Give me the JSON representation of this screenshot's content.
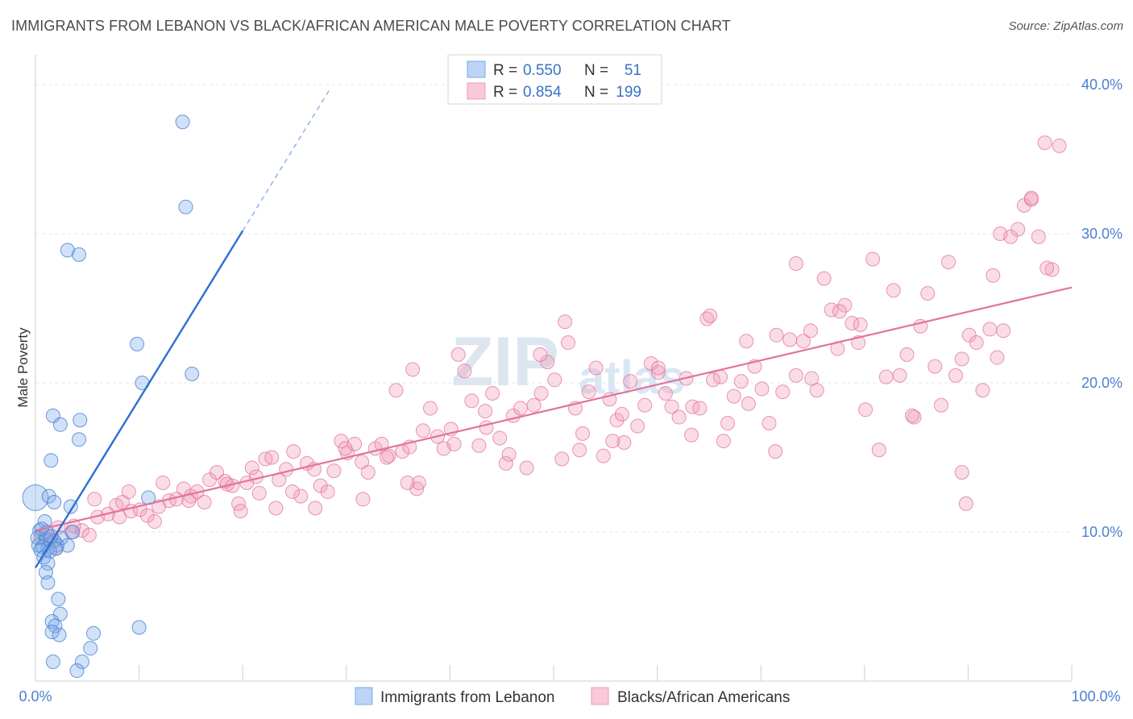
{
  "title": "IMMIGRANTS FROM LEBANON VS BLACK/AFRICAN AMERICAN MALE POVERTY CORRELATION CHART",
  "source": "Source: ZipAtlas.com",
  "watermark": {
    "zip": "ZIP",
    "atlas": "atlas"
  },
  "colors": {
    "blue": "#7aaae8",
    "blue_line": "#2e6fd0",
    "pink": "#f29ab8",
    "pink_line": "#e2739e",
    "tick": "#4a7fd0"
  },
  "legend": {
    "rows": [
      {
        "r_label": "R =",
        "r_value": "0.550",
        "n_label": "N =",
        "n_value": "51"
      },
      {
        "r_label": "R =",
        "r_value": "0.854",
        "n_label": "N =",
        "n_value": "199"
      }
    ]
  },
  "chart_data": {
    "type": "scatter",
    "title": "IMMIGRANTS FROM LEBANON VS BLACK/AFRICAN AMERICAN MALE POVERTY CORRELATION CHART",
    "xlabel": "",
    "ylabel": "Male Poverty",
    "xlim": [
      0,
      100
    ],
    "ylim": [
      0,
      42
    ],
    "x_tick_labels": [
      "0.0%",
      "100.0%"
    ],
    "y_ticks": [
      10,
      20,
      30,
      40
    ],
    "y_tick_labels": [
      "10.0%",
      "20.0%",
      "30.0%",
      "40.0%"
    ],
    "legend_position": "top-center",
    "series": [
      {
        "name": "Immigrants from Lebanon",
        "r": 0.55,
        "n": 51,
        "trend": {
          "x": [
            0,
            20
          ],
          "y": [
            7.6,
            30.2
          ],
          "dashed_to": [
            28.5,
            39.8
          ]
        },
        "points": [
          [
            14.2,
            37.5
          ],
          [
            14.5,
            31.8
          ],
          [
            3.1,
            28.9
          ],
          [
            4.2,
            28.6
          ],
          [
            9.8,
            22.6
          ],
          [
            10.3,
            20.0
          ],
          [
            15.1,
            20.6
          ],
          [
            1.7,
            17.8
          ],
          [
            2.4,
            17.2
          ],
          [
            4.3,
            17.5
          ],
          [
            4.2,
            16.2
          ],
          [
            1.5,
            14.8
          ],
          [
            0.0,
            12.3
          ],
          [
            1.3,
            12.4
          ],
          [
            1.8,
            12.0
          ],
          [
            3.4,
            11.7
          ],
          [
            10.9,
            12.3
          ],
          [
            0.9,
            10.7
          ],
          [
            0.4,
            10.1
          ],
          [
            1.1,
            10.0
          ],
          [
            0.2,
            9.6
          ],
          [
            1.0,
            9.5
          ],
          [
            1.8,
            9.4
          ],
          [
            2.5,
            9.6
          ],
          [
            3.6,
            10.0
          ],
          [
            0.3,
            9.1
          ],
          [
            0.7,
            9.0
          ],
          [
            1.2,
            8.9
          ],
          [
            2.1,
            9.1
          ],
          [
            3.1,
            9.1
          ],
          [
            0.5,
            8.8
          ],
          [
            1.4,
            8.7
          ],
          [
            2.0,
            8.9
          ],
          [
            0.8,
            8.3
          ],
          [
            1.2,
            7.9
          ],
          [
            1.0,
            7.3
          ],
          [
            1.2,
            6.6
          ],
          [
            2.2,
            5.5
          ],
          [
            2.4,
            4.5
          ],
          [
            1.6,
            4.0
          ],
          [
            1.9,
            3.7
          ],
          [
            1.6,
            3.3
          ],
          [
            2.3,
            3.1
          ],
          [
            5.6,
            3.2
          ],
          [
            10.0,
            3.6
          ],
          [
            5.3,
            2.2
          ],
          [
            1.7,
            1.3
          ],
          [
            4.5,
            1.3
          ],
          [
            4.0,
            0.7
          ],
          [
            0.6,
            10.2
          ],
          [
            1.5,
            9.7
          ]
        ]
      },
      {
        "name": "Blacks/African Americans",
        "r": 0.854,
        "n": 199,
        "trend": {
          "x": [
            0,
            100
          ],
          "y": [
            10.1,
            26.4
          ]
        },
        "points": [
          [
            0.5,
            9.6
          ],
          [
            1.0,
            9.8
          ],
          [
            1.8,
            9.4
          ],
          [
            2.2,
            10.3
          ],
          [
            3.5,
            10.0
          ],
          [
            4.5,
            10.1
          ],
          [
            5.2,
            9.8
          ],
          [
            6.0,
            11.0
          ],
          [
            7.0,
            11.2
          ],
          [
            7.8,
            11.8
          ],
          [
            8.4,
            12.0
          ],
          [
            9.2,
            11.4
          ],
          [
            10.1,
            11.5
          ],
          [
            10.8,
            11.1
          ],
          [
            11.5,
            10.7
          ],
          [
            12.3,
            13.3
          ],
          [
            12.9,
            12.1
          ],
          [
            13.6,
            12.2
          ],
          [
            14.3,
            12.9
          ],
          [
            15.0,
            12.4
          ],
          [
            15.6,
            12.7
          ],
          [
            16.3,
            12.0
          ],
          [
            16.8,
            13.5
          ],
          [
            17.5,
            14.0
          ],
          [
            18.3,
            13.4
          ],
          [
            19.0,
            13.1
          ],
          [
            19.6,
            11.9
          ],
          [
            20.4,
            13.3
          ],
          [
            20.9,
            14.3
          ],
          [
            21.6,
            12.6
          ],
          [
            22.2,
            14.9
          ],
          [
            22.8,
            15.0
          ],
          [
            23.5,
            13.5
          ],
          [
            24.2,
            14.2
          ],
          [
            24.9,
            15.4
          ],
          [
            25.6,
            12.4
          ],
          [
            26.2,
            14.6
          ],
          [
            26.9,
            14.2
          ],
          [
            27.5,
            13.1
          ],
          [
            28.2,
            12.7
          ],
          [
            28.8,
            14.1
          ],
          [
            29.5,
            16.1
          ],
          [
            30.1,
            15.3
          ],
          [
            30.8,
            15.9
          ],
          [
            31.5,
            14.7
          ],
          [
            32.1,
            14.0
          ],
          [
            32.8,
            15.6
          ],
          [
            33.4,
            15.9
          ],
          [
            34.1,
            15.1
          ],
          [
            34.8,
            19.5
          ],
          [
            35.4,
            15.4
          ],
          [
            36.1,
            15.7
          ],
          [
            36.8,
            12.9
          ],
          [
            37.4,
            16.8
          ],
          [
            38.1,
            18.3
          ],
          [
            38.8,
            16.4
          ],
          [
            39.4,
            15.6
          ],
          [
            40.1,
            16.9
          ],
          [
            40.8,
            21.9
          ],
          [
            41.4,
            20.8
          ],
          [
            42.1,
            18.8
          ],
          [
            42.8,
            15.8
          ],
          [
            43.4,
            18.1
          ],
          [
            44.1,
            19.3
          ],
          [
            44.8,
            16.3
          ],
          [
            45.4,
            14.6
          ],
          [
            46.1,
            17.8
          ],
          [
            46.8,
            18.3
          ],
          [
            47.4,
            14.3
          ],
          [
            48.1,
            18.5
          ],
          [
            48.8,
            19.3
          ],
          [
            49.4,
            21.4
          ],
          [
            50.1,
            20.2
          ],
          [
            50.8,
            14.9
          ],
          [
            51.4,
            22.7
          ],
          [
            52.1,
            18.3
          ],
          [
            52.8,
            16.6
          ],
          [
            53.4,
            19.4
          ],
          [
            54.1,
            21.0
          ],
          [
            54.8,
            15.1
          ],
          [
            55.4,
            18.9
          ],
          [
            56.1,
            17.5
          ],
          [
            56.8,
            16.0
          ],
          [
            57.4,
            20.1
          ],
          [
            58.1,
            17.1
          ],
          [
            58.8,
            18.5
          ],
          [
            59.4,
            21.3
          ],
          [
            60.1,
            20.7
          ],
          [
            60.8,
            19.3
          ],
          [
            61.4,
            18.4
          ],
          [
            62.1,
            17.7
          ],
          [
            62.8,
            20.3
          ],
          [
            63.4,
            18.4
          ],
          [
            64.1,
            18.3
          ],
          [
            64.8,
            24.3
          ],
          [
            65.4,
            20.2
          ],
          [
            66.1,
            20.4
          ],
          [
            66.8,
            17.3
          ],
          [
            67.4,
            19.1
          ],
          [
            68.1,
            20.1
          ],
          [
            68.8,
            18.6
          ],
          [
            69.4,
            21.1
          ],
          [
            70.1,
            19.6
          ],
          [
            70.8,
            17.3
          ],
          [
            71.4,
            15.4
          ],
          [
            72.1,
            19.4
          ],
          [
            72.8,
            22.9
          ],
          [
            73.4,
            20.5
          ],
          [
            74.1,
            22.8
          ],
          [
            74.8,
            23.5
          ],
          [
            75.4,
            19.5
          ],
          [
            76.1,
            27.0
          ],
          [
            76.8,
            24.9
          ],
          [
            77.4,
            22.3
          ],
          [
            78.1,
            25.2
          ],
          [
            78.8,
            24.0
          ],
          [
            79.4,
            22.7
          ],
          [
            80.1,
            18.2
          ],
          [
            80.8,
            28.3
          ],
          [
            81.4,
            15.5
          ],
          [
            82.1,
            20.4
          ],
          [
            82.8,
            26.2
          ],
          [
            83.4,
            20.5
          ],
          [
            84.1,
            21.9
          ],
          [
            84.8,
            17.7
          ],
          [
            85.4,
            23.8
          ],
          [
            86.1,
            26.0
          ],
          [
            86.8,
            21.1
          ],
          [
            87.4,
            18.5
          ],
          [
            88.1,
            28.1
          ],
          [
            88.8,
            20.5
          ],
          [
            89.4,
            21.6
          ],
          [
            90.1,
            23.2
          ],
          [
            90.8,
            22.7
          ],
          [
            91.4,
            19.5
          ],
          [
            92.1,
            23.6
          ],
          [
            92.8,
            21.7
          ],
          [
            93.4,
            23.5
          ],
          [
            94.1,
            29.8
          ],
          [
            94.8,
            30.3
          ],
          [
            95.4,
            31.9
          ],
          [
            96.1,
            32.3
          ],
          [
            96.8,
            29.8
          ],
          [
            97.4,
            36.1
          ],
          [
            98.1,
            27.6
          ],
          [
            98.8,
            35.9
          ],
          [
            89.4,
            14.0
          ],
          [
            89.8,
            11.9
          ],
          [
            93.1,
            30.0
          ],
          [
            92.4,
            27.2
          ],
          [
            97.6,
            27.7
          ],
          [
            96.1,
            32.4
          ],
          [
            84.6,
            17.8
          ],
          [
            77.6,
            24.8
          ],
          [
            79.6,
            23.9
          ],
          [
            71.5,
            23.2
          ],
          [
            73.4,
            28.0
          ],
          [
            74.9,
            20.3
          ],
          [
            60.1,
            21.0
          ],
          [
            65.1,
            24.5
          ],
          [
            66.4,
            16.1
          ],
          [
            48.7,
            21.9
          ],
          [
            51.1,
            24.1
          ],
          [
            56.6,
            17.9
          ],
          [
            33.9,
            15.0
          ],
          [
            36.4,
            20.9
          ],
          [
            37.0,
            13.3
          ],
          [
            21.3,
            13.7
          ],
          [
            23.2,
            11.6
          ],
          [
            18.5,
            13.2
          ],
          [
            9.0,
            12.7
          ],
          [
            8.1,
            11.0
          ],
          [
            5.7,
            12.2
          ],
          [
            3.7,
            10.4
          ],
          [
            2.0,
            8.9
          ],
          [
            1.4,
            9.5
          ],
          [
            11.9,
            11.7
          ],
          [
            14.8,
            12.1
          ],
          [
            19.8,
            11.4
          ],
          [
            24.8,
            12.7
          ],
          [
            27.0,
            11.6
          ],
          [
            29.9,
            15.6
          ],
          [
            31.6,
            12.2
          ],
          [
            35.9,
            13.3
          ],
          [
            40.4,
            15.9
          ],
          [
            43.5,
            17.0
          ],
          [
            45.7,
            15.2
          ],
          [
            52.5,
            15.5
          ],
          [
            55.7,
            16.1
          ],
          [
            63.3,
            16.5
          ],
          [
            68.6,
            22.8
          ]
        ]
      }
    ]
  },
  "bottom_legend": [
    "Immigrants from Lebanon",
    "Blacks/African Americans"
  ]
}
